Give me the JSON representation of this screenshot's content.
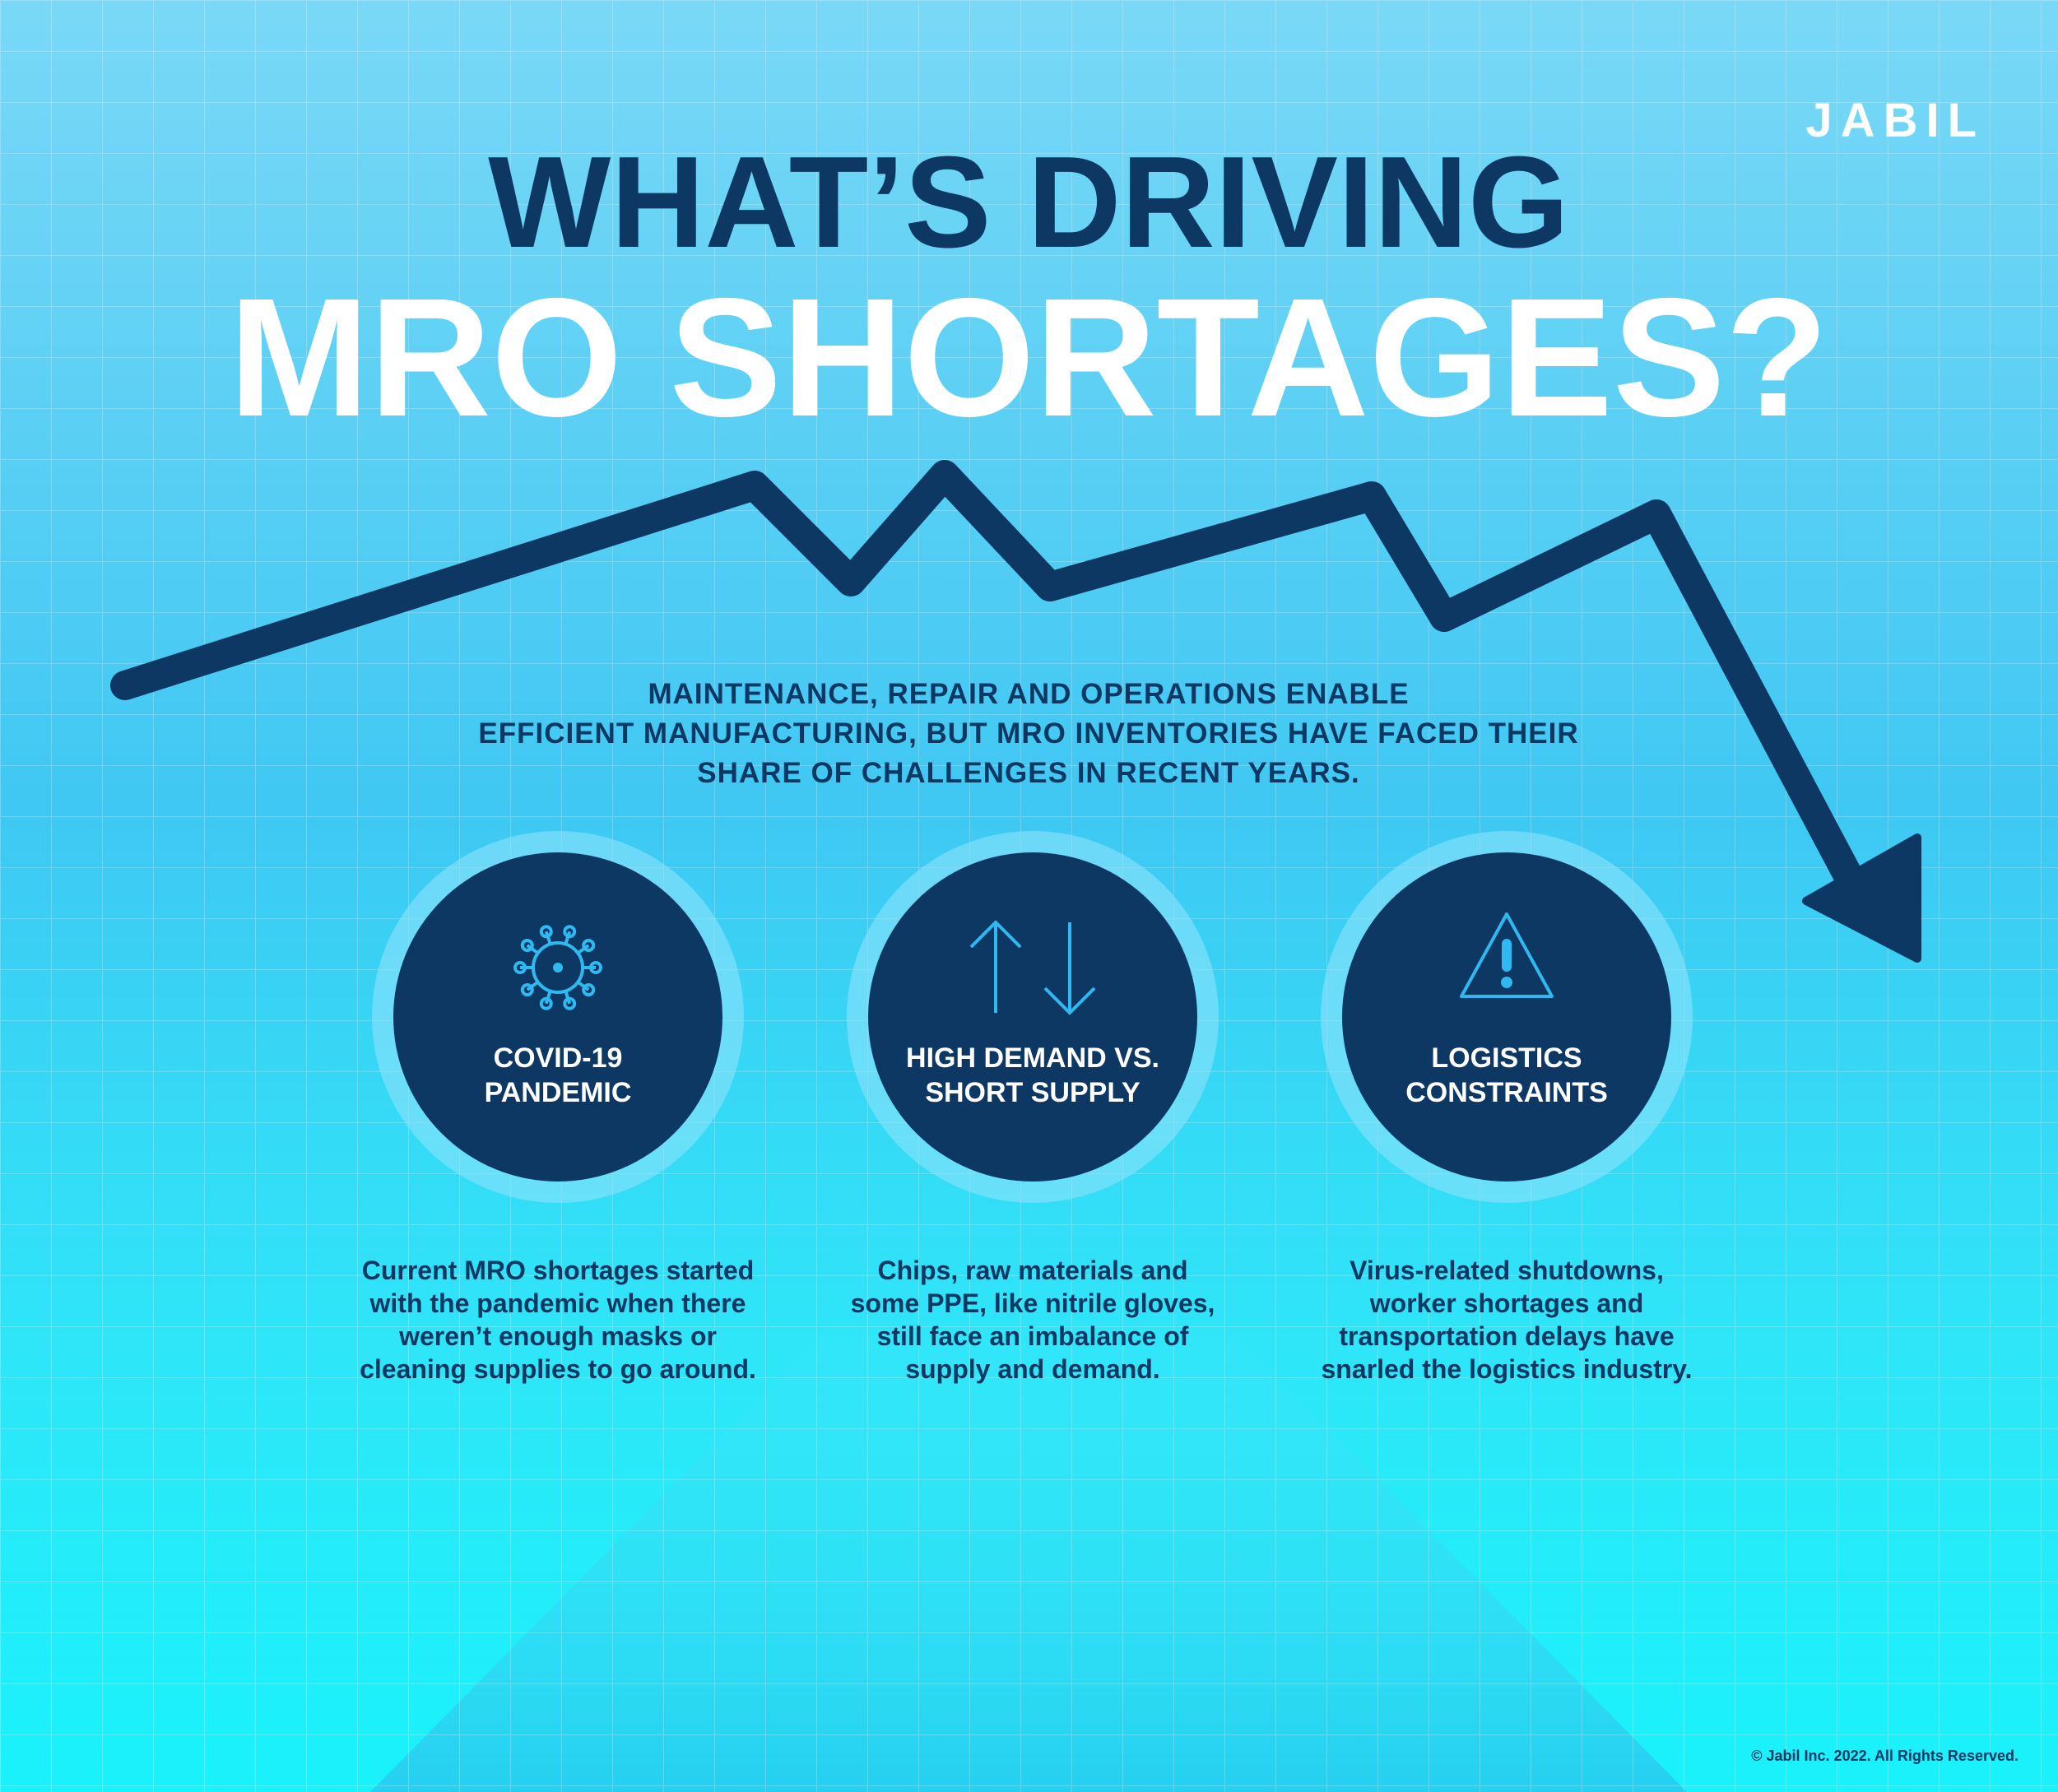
{
  "logo": "JABIL",
  "title": {
    "line1": "WHAT’S DRIVING",
    "line2": "MRO SHORTAGES?"
  },
  "intro": [
    "MAINTENANCE, REPAIR AND OPERATIONS ENABLE",
    "EFFICIENT MANUFACTURING, BUT MRO INVENTORIES HAVE FACED THEIR",
    "SHARE OF CHALLENGES IN RECENT YEARS."
  ],
  "cards": [
    {
      "title": [
        "COVID-19",
        "PANDEMIC"
      ],
      "body": [
        "Current MRO shortages started",
        "with the pandemic when there",
        "weren’t enough masks or",
        "cleaning supplies to go around."
      ]
    },
    {
      "title": [
        "HIGH DEMAND VS.",
        "SHORT SUPPLY"
      ],
      "body": [
        "Chips, raw materials and",
        "some PPE, like nitrile gloves,",
        "still face an imbalance of",
        "supply and demand."
      ]
    },
    {
      "title": [
        "LOGISTICS",
        "CONSTRAINTS"
      ],
      "body": [
        "Virus-related shutdowns,",
        "worker shortages and",
        "transportation delays have",
        "snarled the logistics industry."
      ]
    }
  ],
  "footer": "© Jabil Inc. 2022. All Rights Reserved."
}
